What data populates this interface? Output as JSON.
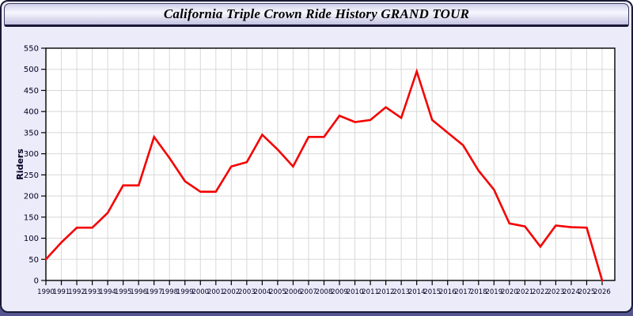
{
  "window": {
    "title": "California Triple Crown Ride History GRAND TOUR"
  },
  "chart_data": {
    "type": "line",
    "title": "California Triple Crown Ride History GRAND TOUR",
    "xlabel": "",
    "ylabel": "Riders",
    "x": [
      1990,
      1991,
      1992,
      1993,
      1994,
      1995,
      1996,
      1997,
      1998,
      1999,
      2000,
      2001,
      2002,
      2003,
      2004,
      2005,
      2006,
      2007,
      2008,
      2009,
      2010,
      2011,
      2012,
      2013,
      2014,
      2015,
      2016,
      2017,
      2018,
      2019,
      2020,
      2021,
      2022,
      2023,
      2024,
      2025,
      2026
    ],
    "series": [
      {
        "name": "Riders",
        "color": "#f40000",
        "values": [
          50,
          90,
          125,
          125,
          160,
          225,
          225,
          340,
          290,
          235,
          210,
          210,
          270,
          280,
          345,
          310,
          270,
          340,
          340,
          390,
          375,
          380,
          410,
          385,
          495,
          380,
          350,
          320,
          260,
          215,
          135,
          128,
          80,
          130,
          126,
          125,
          0
        ]
      }
    ],
    "ylim": [
      0,
      550
    ],
    "ytick_step": 50,
    "grid": true,
    "legend": "none"
  },
  "colors": {
    "page_bg": "#ffffff",
    "panel_bg": "#ebebfa",
    "panel_border": "#191936",
    "grid": "#d8d8d8",
    "plot_border": "#000000",
    "tick_text": "#000022",
    "line": "#f40000",
    "bottom_strip": "#55558f",
    "header_gradient_top": "#cfcfea",
    "header_gradient_mid": "#f7f7ff",
    "header_gradient_bottom": "#c3c3e2"
  }
}
